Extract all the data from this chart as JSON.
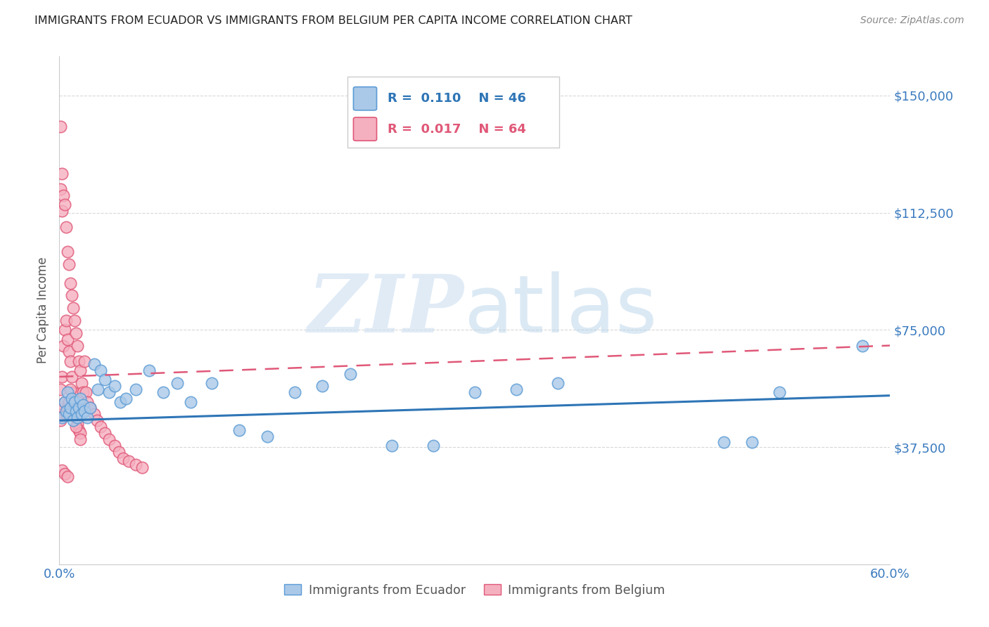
{
  "title": "IMMIGRANTS FROM ECUADOR VS IMMIGRANTS FROM BELGIUM PER CAPITA INCOME CORRELATION CHART",
  "source": "Source: ZipAtlas.com",
  "ylabel": "Per Capita Income",
  "xlim": [
    0.0,
    0.6
  ],
  "ylim": [
    0,
    162500
  ],
  "yticks": [
    0,
    37500,
    75000,
    112500,
    150000
  ],
  "ytick_labels": [
    "",
    "$37,500",
    "$75,000",
    "$112,500",
    "$150,000"
  ],
  "xticks": [
    0.0,
    0.1,
    0.2,
    0.3,
    0.4,
    0.5,
    0.6
  ],
  "xtick_display": [
    "0.0%",
    "",
    "",
    "",
    "",
    "",
    "60.0%"
  ],
  "ecuador_face": "#aac9e8",
  "ecuador_edge": "#5b9bd5",
  "belgium_face": "#f5b0c0",
  "belgium_edge": "#e05878",
  "trend_ecuador": "#2e75b6",
  "trend_belgium": "#e05878",
  "r_ecuador": "0.110",
  "n_ecuador": "46",
  "r_belgium": "0.017",
  "n_belgium": "64",
  "tick_color": "#3a7abf",
  "grid_color": "#d8d8d8",
  "ecuador_x": [
    0.002,
    0.004,
    0.005,
    0.006,
    0.007,
    0.008,
    0.009,
    0.01,
    0.011,
    0.012,
    0.013,
    0.014,
    0.015,
    0.016,
    0.017,
    0.018,
    0.02,
    0.022,
    0.025,
    0.028,
    0.03,
    0.033,
    0.036,
    0.04,
    0.044,
    0.048,
    0.055,
    0.065,
    0.075,
    0.085,
    0.095,
    0.11,
    0.13,
    0.15,
    0.17,
    0.19,
    0.21,
    0.24,
    0.27,
    0.3,
    0.33,
    0.36,
    0.48,
    0.5,
    0.52,
    0.58
  ],
  "ecuador_y": [
    47000,
    52000,
    49000,
    55000,
    48000,
    50000,
    53000,
    46000,
    52000,
    49000,
    47000,
    50000,
    53000,
    48000,
    51000,
    49000,
    47000,
    50000,
    64000,
    56000,
    62000,
    59000,
    55000,
    57000,
    52000,
    53000,
    56000,
    62000,
    55000,
    58000,
    52000,
    58000,
    43000,
    41000,
    55000,
    57000,
    61000,
    38000,
    38000,
    55000,
    56000,
    58000,
    39000,
    39000,
    55000,
    70000
  ],
  "belgium_x": [
    0.001,
    0.001,
    0.001,
    0.001,
    0.002,
    0.002,
    0.002,
    0.002,
    0.003,
    0.003,
    0.003,
    0.004,
    0.004,
    0.004,
    0.005,
    0.005,
    0.005,
    0.006,
    0.006,
    0.006,
    0.007,
    0.007,
    0.007,
    0.008,
    0.008,
    0.008,
    0.009,
    0.009,
    0.01,
    0.01,
    0.011,
    0.011,
    0.012,
    0.012,
    0.013,
    0.013,
    0.014,
    0.014,
    0.015,
    0.015,
    0.016,
    0.017,
    0.018,
    0.019,
    0.02,
    0.022,
    0.025,
    0.027,
    0.03,
    0.033,
    0.036,
    0.04,
    0.043,
    0.046,
    0.05,
    0.055,
    0.06,
    0.002,
    0.004,
    0.006,
    0.008,
    0.01,
    0.012,
    0.015
  ],
  "belgium_y": [
    140000,
    120000,
    56000,
    46000,
    125000,
    113000,
    60000,
    48000,
    118000,
    70000,
    50000,
    115000,
    75000,
    52000,
    108000,
    78000,
    48000,
    100000,
    72000,
    50000,
    96000,
    68000,
    52000,
    90000,
    65000,
    48000,
    86000,
    60000,
    82000,
    55000,
    78000,
    50000,
    74000,
    47000,
    70000,
    45000,
    65000,
    43000,
    62000,
    42000,
    58000,
    55000,
    65000,
    55000,
    52000,
    50000,
    48000,
    46000,
    44000,
    42000,
    40000,
    38000,
    36000,
    34000,
    33000,
    32000,
    31000,
    30000,
    29000,
    28000,
    56000,
    48000,
    44000,
    40000
  ],
  "trend_bel_x0": 0.0,
  "trend_bel_x1": 0.6,
  "trend_bel_y0": 60000,
  "trend_bel_y1": 70000,
  "trend_ecu_x0": 0.0,
  "trend_ecu_x1": 0.6,
  "trend_ecu_y0": 46000,
  "trend_ecu_y1": 54000
}
